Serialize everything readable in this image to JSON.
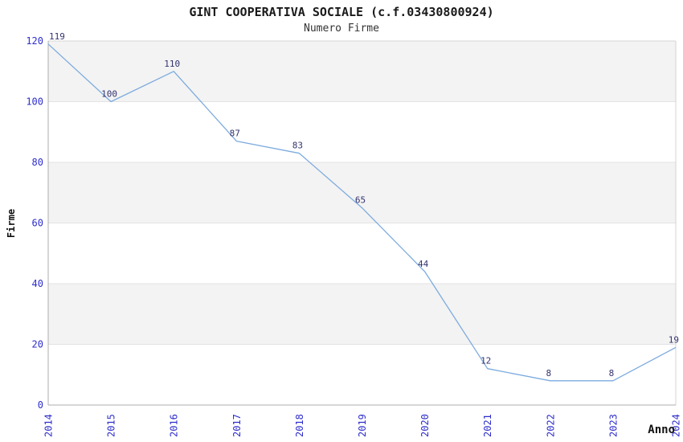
{
  "chart_data": {
    "type": "line",
    "title": "GINT COOPERATIVA SOCIALE (c.f.03430800924)",
    "subtitle": "Numero Firme",
    "xlabel": "Anno",
    "ylabel": "Firme",
    "x": [
      2014,
      2015,
      2016,
      2017,
      2018,
      2019,
      2020,
      2021,
      2022,
      2023,
      2024
    ],
    "values": [
      119,
      100,
      110,
      87,
      83,
      65,
      44,
      12,
      8,
      8,
      19
    ],
    "ylim": [
      0,
      120
    ],
    "ytick_step": 20,
    "yticks": [
      0,
      20,
      40,
      60,
      80,
      100,
      120
    ],
    "grid": true,
    "legend_position": "none",
    "colors": {
      "line": "#7cabde",
      "tick_label": "#2e2ecc",
      "point_label": "#333370",
      "band_gray": "#f3f3f3",
      "gridline": "#e3e3e3",
      "axis_dark": "#adadad",
      "axis_light": "#d6d6d6",
      "title": "#1a1a1a",
      "subtitle": "#333333"
    }
  }
}
